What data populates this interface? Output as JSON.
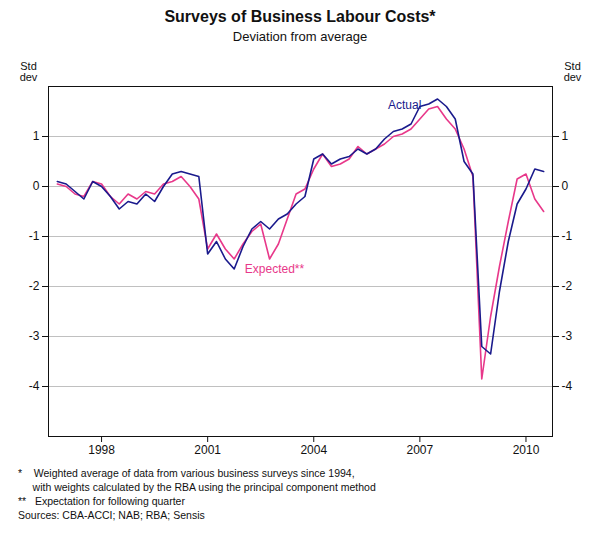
{
  "chart_data": {
    "type": "line",
    "title": "Surveys of Business Labour Costs*",
    "subtitle": "Deviation from average",
    "y_label": "Std\ndev",
    "y2_label": "Std\ndev",
    "xlim": [
      1996.5,
      2010.75
    ],
    "ylim": [
      -5,
      2
    ],
    "xticks": [
      1998,
      2001,
      2004,
      2007,
      2010
    ],
    "yticks": [
      -4,
      -3,
      -2,
      -1,
      0,
      1
    ],
    "grid": "y",
    "legend": false,
    "x": [
      1996.75,
      1997.0,
      1997.25,
      1997.5,
      1997.75,
      1998.0,
      1998.25,
      1998.5,
      1998.75,
      1999.0,
      1999.25,
      1999.5,
      1999.75,
      2000.0,
      2000.25,
      2000.5,
      2000.75,
      2001.0,
      2001.25,
      2001.5,
      2001.75,
      2002.0,
      2002.25,
      2002.5,
      2002.75,
      2003.0,
      2003.25,
      2003.5,
      2003.75,
      2004.0,
      2004.25,
      2004.5,
      2004.75,
      2005.0,
      2005.25,
      2005.5,
      2005.75,
      2006.0,
      2006.25,
      2006.5,
      2006.75,
      2007.0,
      2007.25,
      2007.5,
      2007.75,
      2008.0,
      2008.25,
      2008.5,
      2008.75,
      2009.0,
      2009.25,
      2009.5,
      2009.75,
      2010.0,
      2010.25,
      2010.5
    ],
    "series": [
      {
        "name": "Actual",
        "color": "#1a1a8c",
        "values": [
          0.1,
          0.05,
          -0.1,
          -0.25,
          0.1,
          0.0,
          -0.2,
          -0.45,
          -0.3,
          -0.35,
          -0.15,
          -0.3,
          0.0,
          0.25,
          0.3,
          0.25,
          0.2,
          -1.35,
          -1.1,
          -1.45,
          -1.65,
          -1.2,
          -0.85,
          -0.7,
          -0.85,
          -0.65,
          -0.55,
          -0.35,
          -0.2,
          0.55,
          0.65,
          0.45,
          0.55,
          0.6,
          0.75,
          0.65,
          0.75,
          0.95,
          1.1,
          1.15,
          1.25,
          1.6,
          1.65,
          1.75,
          1.6,
          1.35,
          0.5,
          0.25,
          -3.2,
          -3.35,
          -2.1,
          -1.1,
          -0.35,
          -0.05,
          0.35,
          0.3
        ]
      },
      {
        "name": "Expected**",
        "color": "#e8388a",
        "values": [
          0.05,
          0.0,
          -0.15,
          -0.2,
          0.1,
          0.05,
          -0.2,
          -0.35,
          -0.15,
          -0.25,
          -0.1,
          -0.15,
          0.05,
          0.1,
          0.2,
          0.0,
          -0.25,
          -1.25,
          -0.95,
          -1.25,
          -1.45,
          -1.15,
          -0.9,
          -0.75,
          -1.45,
          -1.15,
          -0.65,
          -0.15,
          -0.05,
          0.35,
          0.65,
          0.4,
          0.45,
          0.55,
          0.8,
          0.65,
          0.75,
          0.85,
          1.0,
          1.05,
          1.15,
          1.35,
          1.55,
          1.6,
          1.35,
          1.15,
          0.75,
          0.2,
          -3.85,
          -2.6,
          -1.6,
          -0.7,
          0.15,
          0.25,
          -0.25,
          -0.5
        ]
      }
    ],
    "annotations": [
      {
        "text": "Actual",
        "x": 2006.1,
        "y": 1.55,
        "color": "#1a1a8c"
      },
      {
        "text": "Expected**",
        "x": 2002.05,
        "y": -1.55,
        "color": "#e8388a"
      }
    ],
    "footnotes": [
      "*    Weighted average of data from various business surveys since 1994,",
      "     with weights calculated by the RBA using the principal component method",
      "**   Expectation for following quarter",
      "Sources: CBA-ACCI; NAB; RBA; Sensis"
    ]
  }
}
